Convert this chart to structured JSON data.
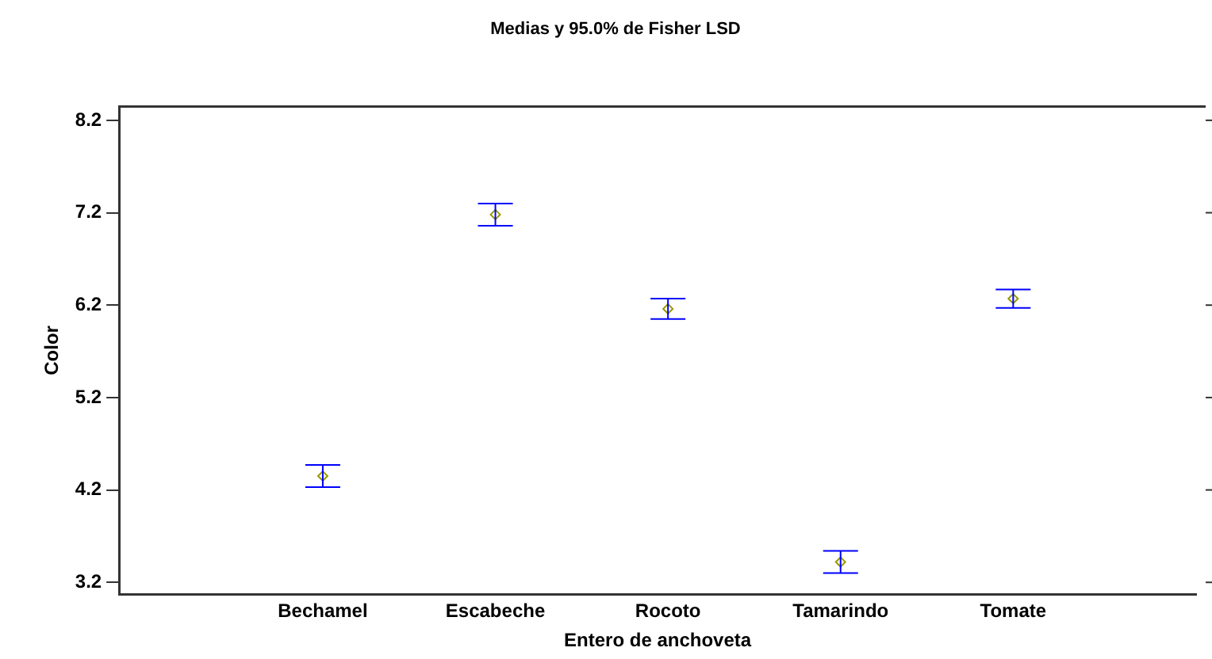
{
  "chart_data": {
    "type": "scatter",
    "title": "Medias y 95.0% de Fisher LSD",
    "xlabel": "Entero de anchoveta",
    "ylabel": "Color",
    "categories": [
      "Bechamel",
      "Escabeche",
      "Rocoto",
      "Tamarindo",
      "Tomate"
    ],
    "series": [
      {
        "color": "#999900",
        "values": [
          4.35,
          7.18,
          6.16,
          3.42,
          6.27
        ],
        "errors": [
          0.12,
          0.12,
          0.11,
          0.12,
          0.1
        ]
      }
    ],
    "ylim": [
      3.07,
      8.35
    ],
    "yticks": [
      3.2,
      4.2,
      5.2,
      6.2,
      7.2,
      8.2
    ],
    "marker": "diamond",
    "grid": false,
    "legend": false
  }
}
